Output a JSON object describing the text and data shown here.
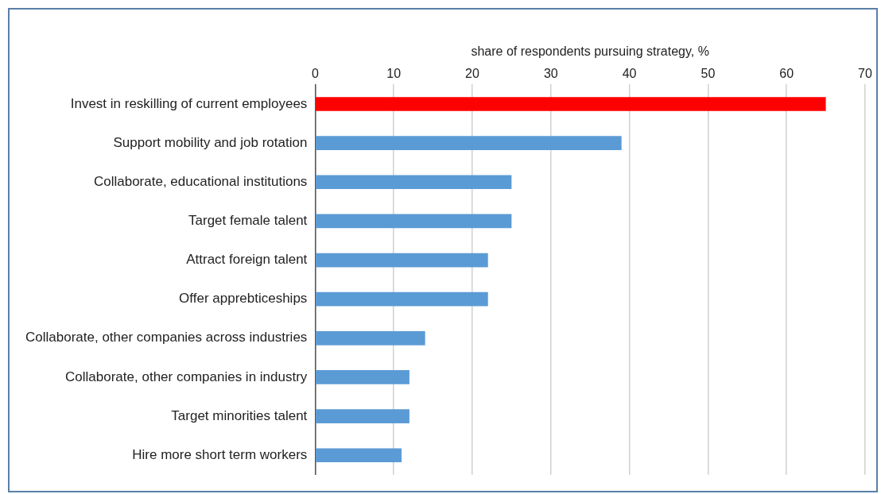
{
  "chart_data": {
    "type": "bar",
    "orientation": "horizontal",
    "xlabel": "share of respondents pursuing strategy, %",
    "categories": [
      "Invest in reskilling of current employees",
      "Support mobility and job rotation",
      "Collaborate, educational institutions",
      "Target female talent",
      "Attract foreign talent",
      "Offer apprebticeships",
      "Collaborate, other companies across industries",
      "Collaborate, other companies in industry",
      "Target minorities talent",
      "Hire more short term workers"
    ],
    "values": [
      65,
      39,
      25,
      25,
      22,
      22,
      14,
      12,
      12,
      11
    ],
    "colors": [
      "#ff0000",
      "#5b9bd5",
      "#5b9bd5",
      "#5b9bd5",
      "#5b9bd5",
      "#5b9bd5",
      "#5b9bd5",
      "#5b9bd5",
      "#5b9bd5",
      "#5b9bd5"
    ],
    "xlim": [
      0,
      70
    ],
    "xticks": [
      0,
      10,
      20,
      30,
      40,
      50,
      60,
      70
    ],
    "grid": "x",
    "legend": false
  }
}
